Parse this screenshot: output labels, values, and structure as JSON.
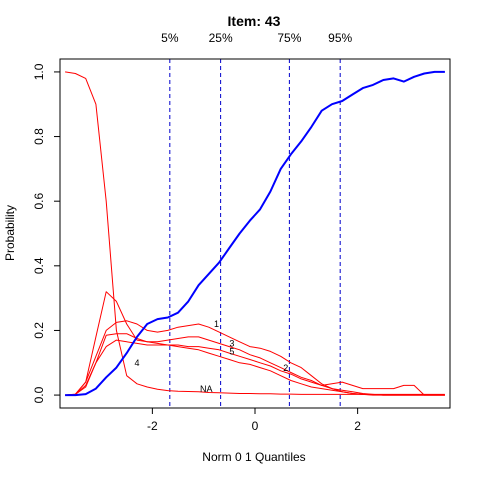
{
  "chart_data": {
    "type": "line",
    "title": "Item:  43",
    "xlabel": "Norm 0 1 Quantiles",
    "ylabel": "Probability",
    "xlim": [
      -3.8,
      3.8
    ],
    "ylim": [
      -0.04,
      1.04
    ],
    "xticks": [
      -2,
      0,
      2
    ],
    "yticks": [
      0.0,
      0.2,
      0.4,
      0.6,
      0.8,
      1.0
    ],
    "grid": false,
    "quantiles": [
      {
        "label": "5%",
        "x": -1.66
      },
      {
        "label": "25%",
        "x": -0.67
      },
      {
        "label": "75%",
        "x": 0.67
      },
      {
        "label": "95%",
        "x": 1.66
      }
    ],
    "series": [
      {
        "name": "",
        "color": "#0000ff",
        "emphasis": true,
        "x": [
          -3.7,
          -3.5,
          -3.3,
          -3.1,
          -2.9,
          -2.7,
          -2.5,
          -2.3,
          -2.1,
          -1.9,
          -1.7,
          -1.5,
          -1.3,
          -1.1,
          -0.9,
          -0.7,
          -0.5,
          -0.3,
          -0.1,
          0.1,
          0.3,
          0.5,
          0.7,
          0.9,
          1.1,
          1.3,
          1.5,
          1.7,
          1.9,
          2.1,
          2.3,
          2.5,
          2.7,
          2.9,
          3.1,
          3.3,
          3.5,
          3.7
        ],
        "values": [
          0.0,
          0.0,
          0.003,
          0.02,
          0.055,
          0.085,
          0.13,
          0.18,
          0.22,
          0.235,
          0.24,
          0.255,
          0.29,
          0.34,
          0.375,
          0.41,
          0.455,
          0.5,
          0.54,
          0.575,
          0.63,
          0.7,
          0.745,
          0.785,
          0.83,
          0.88,
          0.9,
          0.91,
          0.93,
          0.95,
          0.96,
          0.975,
          0.98,
          0.97,
          0.985,
          0.995,
          1.0,
          1.0
        ]
      },
      {
        "name": "",
        "color": "#ff0000",
        "x": [
          -3.7,
          -3.5,
          -3.3,
          -3.1,
          -2.9,
          -2.7,
          -2.5,
          -2.3,
          -2.1,
          -1.9,
          -1.7,
          -1.5,
          -1.3,
          -1.1,
          -0.9,
          -0.7,
          -0.5,
          -0.3,
          -0.1,
          0.1,
          0.3,
          0.5,
          0.7,
          0.9,
          1.1,
          1.3,
          1.5,
          1.7,
          1.9,
          2.1,
          2.3,
          2.5,
          2.7,
          2.9,
          3.1,
          3.3,
          3.5,
          3.7
        ],
        "values": [
          1.0,
          0.995,
          0.98,
          0.9,
          0.6,
          0.2,
          0.06,
          0.035,
          0.025,
          0.018,
          0.014,
          0.012,
          0.011,
          0.01,
          0.008,
          0.007,
          0.006,
          0.005,
          0.005,
          0.004,
          0.004,
          0.003,
          0.003,
          0.002,
          0.002,
          0.002,
          0.002,
          0.002,
          0.002,
          0.002,
          0.002,
          0.002,
          0.002,
          0.002,
          0.002,
          0.002,
          0.002,
          0.002
        ]
      },
      {
        "name": "",
        "color": "#ff0000",
        "x": [
          -3.7,
          -3.5,
          -3.3,
          -3.1,
          -2.9,
          -2.7,
          -2.5,
          -2.3,
          -2.1,
          -1.9,
          -1.7,
          -1.5,
          -1.3,
          -1.1,
          -0.9,
          -0.7,
          -0.5,
          -0.3,
          -0.1,
          0.1,
          0.3,
          0.5,
          0.7,
          0.9,
          1.1,
          1.3,
          1.5,
          1.7,
          1.9,
          2.1,
          2.3,
          2.5,
          2.7,
          2.9,
          3.1,
          3.3,
          3.5,
          3.7
        ],
        "values": [
          0.0,
          0.002,
          0.04,
          0.12,
          0.2,
          0.225,
          0.23,
          0.22,
          0.2,
          0.195,
          0.2,
          0.21,
          0.215,
          0.22,
          0.21,
          0.195,
          0.18,
          0.165,
          0.15,
          0.145,
          0.135,
          0.12,
          0.1,
          0.085,
          0.06,
          0.035,
          0.02,
          0.01,
          0.005,
          0.002,
          0.001,
          0.0,
          0.0,
          0.0,
          0.0,
          0.0,
          0.0,
          0.0
        ]
      },
      {
        "name": "",
        "color": "#ff0000",
        "x": [
          -3.7,
          -3.5,
          -3.3,
          -3.1,
          -2.9,
          -2.7,
          -2.5,
          -2.3,
          -2.1,
          -1.9,
          -1.7,
          -1.5,
          -1.3,
          -1.1,
          -0.9,
          -0.7,
          -0.5,
          -0.3,
          -0.1,
          0.1,
          0.3,
          0.5,
          0.7,
          0.9,
          1.1,
          1.3,
          1.5,
          1.7,
          1.9,
          2.1,
          2.3,
          2.5,
          2.7,
          2.9,
          3.1,
          3.3,
          3.5,
          3.7
        ],
        "values": [
          0.0,
          0.002,
          0.03,
          0.1,
          0.185,
          0.19,
          0.19,
          0.175,
          0.165,
          0.165,
          0.17,
          0.175,
          0.18,
          0.18,
          0.17,
          0.16,
          0.15,
          0.14,
          0.125,
          0.115,
          0.1,
          0.085,
          0.07,
          0.055,
          0.045,
          0.03,
          0.035,
          0.04,
          0.03,
          0.02,
          0.02,
          0.02,
          0.02,
          0.03,
          0.03,
          0.0,
          0.0,
          0.0
        ]
      },
      {
        "name": "",
        "color": "#ff0000",
        "x": [
          -3.7,
          -3.5,
          -3.3,
          -3.1,
          -2.9,
          -2.7,
          -2.5,
          -2.3,
          -2.1,
          -1.9,
          -1.7,
          -1.5,
          -1.3,
          -1.1,
          -0.9,
          -0.7,
          -0.5,
          -0.3,
          -0.1,
          0.1,
          0.3,
          0.5,
          0.7,
          0.9,
          1.1,
          1.3,
          1.5,
          1.7,
          1.9,
          2.1,
          2.3,
          2.5,
          2.7,
          2.9,
          3.1,
          3.3,
          3.5,
          3.7
        ],
        "values": [
          0.0,
          0.002,
          0.025,
          0.1,
          0.15,
          0.17,
          0.165,
          0.16,
          0.155,
          0.155,
          0.155,
          0.155,
          0.15,
          0.15,
          0.145,
          0.14,
          0.13,
          0.12,
          0.11,
          0.1,
          0.09,
          0.075,
          0.065,
          0.05,
          0.04,
          0.03,
          0.02,
          0.015,
          0.01,
          0.005,
          0.002,
          0.0,
          0.0,
          0.0,
          0.0,
          0.0,
          0.0,
          0.0
        ]
      },
      {
        "name": "",
        "color": "#ff0000",
        "x": [
          -3.7,
          -3.5,
          -3.3,
          -3.1,
          -2.9,
          -2.7,
          -2.5,
          -2.3,
          -2.1,
          -1.9,
          -1.7,
          -1.5,
          -1.3,
          -1.1,
          -0.9,
          -0.7,
          -0.5,
          -0.3,
          -0.1,
          0.1,
          0.3,
          0.5,
          0.7,
          0.9,
          1.1,
          1.3,
          1.5,
          1.7,
          1.9,
          2.1,
          2.3,
          2.5,
          2.7,
          2.9,
          3.1,
          3.3,
          3.5,
          3.7
        ],
        "values": [
          0.0,
          0.003,
          0.04,
          0.18,
          0.32,
          0.29,
          0.22,
          0.17,
          0.165,
          0.16,
          0.155,
          0.15,
          0.145,
          0.14,
          0.13,
          0.12,
          0.11,
          0.1,
          0.095,
          0.085,
          0.075,
          0.06,
          0.045,
          0.035,
          0.025,
          0.02,
          0.015,
          0.01,
          0.005,
          0.002,
          0.0,
          0.0,
          0.0,
          0.0,
          0.0,
          0.0,
          0.0,
          0.0
        ]
      }
    ],
    "annotations": [
      {
        "text": "1",
        "x": -0.75,
        "y": 0.21
      },
      {
        "text": "3",
        "x": -0.45,
        "y": 0.15
      },
      {
        "text": "5",
        "x": -0.45,
        "y": 0.125
      },
      {
        "text": "2",
        "x": 0.6,
        "y": 0.075
      },
      {
        "text": "4",
        "x": -2.3,
        "y": 0.09
      },
      {
        "text": "NA",
        "x": -0.95,
        "y": 0.01
      }
    ]
  }
}
